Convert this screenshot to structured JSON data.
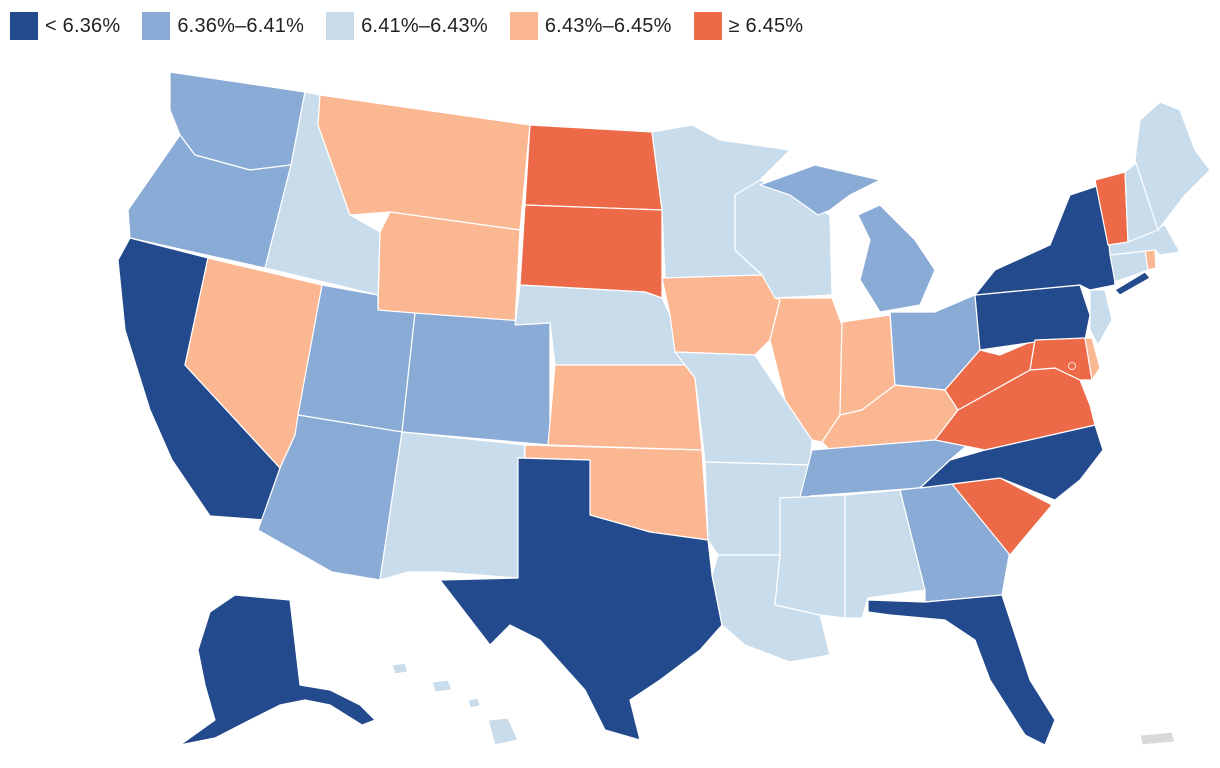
{
  "legend": {
    "bins": [
      {
        "label": "< 6.36%",
        "color": "#234a8c"
      },
      {
        "label": "6.36%–6.41%",
        "color": "#8aabd6"
      },
      {
        "label": "6.41%–6.43%",
        "color": "#c9dcec"
      },
      {
        "label": "6.43%–6.45%",
        "color": "#fbb692"
      },
      {
        "label": "≥ 6.45%",
        "color": "#ec6a48"
      }
    ]
  },
  "colors": {
    "no_data": "#d9d9d9"
  },
  "states": {
    "WA": 1,
    "OR": 1,
    "CA": 0,
    "NV": 3,
    "ID": 2,
    "MT": 3,
    "WY": 3,
    "UT": 1,
    "AZ": 1,
    "CO": 1,
    "NM": 2,
    "ND": 4,
    "SD": 4,
    "NE": 2,
    "KS": 3,
    "OK": 3,
    "TX": 0,
    "MN": 2,
    "IA": 3,
    "MO": 2,
    "AR": 2,
    "LA": 2,
    "WI": 2,
    "IL": 3,
    "MI": 1,
    "IN": 3,
    "OH": 1,
    "KY": 3,
    "TN": 1,
    "MS": 2,
    "AL": 2,
    "GA": 1,
    "FL": 0,
    "SC": 4,
    "NC": 0,
    "VA": 4,
    "WV": 4,
    "MD": 4,
    "DE": 3,
    "PA": 0,
    "NJ": 2,
    "NY": 0,
    "CT": 2,
    "RI": 3,
    "MA": 2,
    "VT": 4,
    "NH": 2,
    "ME": 2,
    "AK": 0,
    "HI": 2,
    "DC": 4,
    "PR": -1
  }
}
